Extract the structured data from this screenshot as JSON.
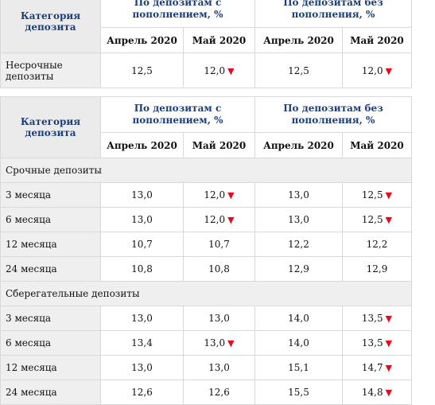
{
  "table1": {
    "category_header": "Категория депозита",
    "group_with": "По депозитам с пополнением, %",
    "group_without": "По депозитам без пополнения, %",
    "months": [
      "Апрель 2020",
      "Май 2020",
      "Апрель 2020",
      "Май 2020"
    ],
    "rows": [
      {
        "label": "Несрочные депозиты",
        "values": [
          "12,5",
          "12,0",
          "12,5",
          "12,0"
        ],
        "down": [
          false,
          true,
          false,
          true
        ]
      }
    ]
  },
  "table2": {
    "category_header": "Категория депозита",
    "group_with": "По депозитам с пополнением, %",
    "group_without": "По депозитам без пополнения, %",
    "months": [
      "Апрель 2020",
      "Май 2020",
      "Апрель 2020",
      "Май 2020"
    ],
    "sections": [
      {
        "title": "Срочные депозиты",
        "rows": [
          {
            "label": "3 месяца",
            "values": [
              "13,0",
              "12,0",
              "13,0",
              "12,5"
            ],
            "down": [
              false,
              true,
              false,
              true
            ]
          },
          {
            "label": "6 месяца",
            "values": [
              "13,0",
              "12,0",
              "13,0",
              "12,5"
            ],
            "down": [
              false,
              true,
              false,
              true
            ]
          },
          {
            "label": "12 месяца",
            "values": [
              "10,7",
              "10,7",
              "12,2",
              "12,2"
            ],
            "down": [
              false,
              false,
              false,
              false
            ]
          },
          {
            "label": "24 месяца",
            "values": [
              "10,8",
              "10,8",
              "12,9",
              "12,9"
            ],
            "down": [
              false,
              false,
              false,
              false
            ]
          }
        ]
      },
      {
        "title": "Сберегательные депозиты",
        "rows": [
          {
            "label": "3 месяца",
            "values": [
              "13,0",
              "13,0",
              "14,0",
              "13,5"
            ],
            "down": [
              false,
              false,
              false,
              true
            ]
          },
          {
            "label": "6 месяца",
            "values": [
              "13,4",
              "13,0",
              "14,0",
              "13,5"
            ],
            "down": [
              false,
              true,
              false,
              true
            ]
          },
          {
            "label": "12 месяца",
            "values": [
              "13,0",
              "13,0",
              "15,1",
              "14,7"
            ],
            "down": [
              false,
              false,
              false,
              true
            ]
          },
          {
            "label": "24 месяца",
            "values": [
              "12,6",
              "12,6",
              "15,5",
              "14,8"
            ],
            "down": [
              false,
              false,
              false,
              true
            ]
          }
        ]
      }
    ]
  },
  "icons": {
    "decrease": "down-triangle-icon",
    "decrease_color": "#e8091f"
  }
}
